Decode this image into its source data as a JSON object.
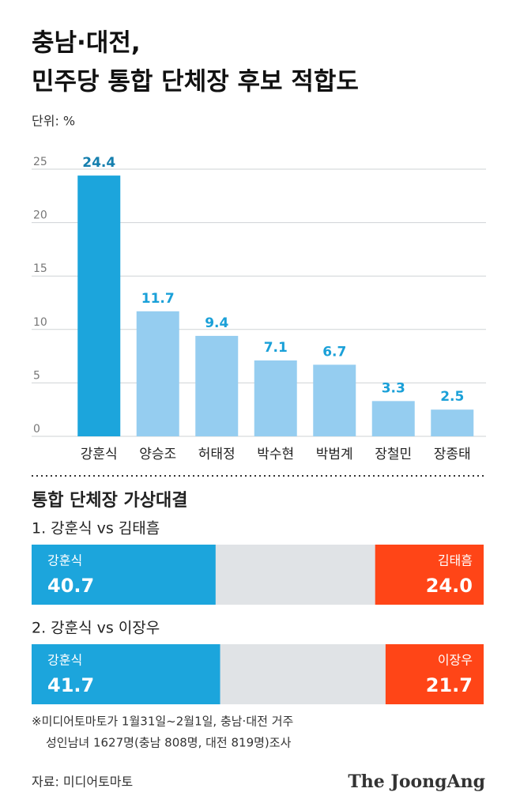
{
  "title_lines": [
    "충남·대전,",
    "민주당 통합 단체장 후보 적합도"
  ],
  "chart_data": {
    "type": "bar",
    "unit_label": "단위: %",
    "categories": [
      "강훈식",
      "양승조",
      "허태정",
      "박수현",
      "박범계",
      "장철민",
      "장종태"
    ],
    "values": [
      24.4,
      11.7,
      9.4,
      7.1,
      6.7,
      3.3,
      2.5
    ],
    "colors": [
      "#1ca5dc",
      "#95cdf0",
      "#95cdf0",
      "#95cdf0",
      "#95cdf0",
      "#95cdf0",
      "#95cdf0"
    ],
    "ylim": [
      0,
      25
    ],
    "yticks": [
      0,
      5,
      10,
      15,
      20,
      25
    ],
    "grid": true
  },
  "matchups": {
    "title": "통합 단체장 가상대결",
    "items": [
      {
        "label": "1. 강훈식 vs 김태흠",
        "left": {
          "name": "강훈식",
          "value": 40.7,
          "color": "#1ca5dc"
        },
        "right": {
          "name": "김태흠",
          "value": 24.0,
          "value_label": "24.0",
          "color": "#ff4517"
        }
      },
      {
        "label": "2. 강훈식 vs 이장우",
        "left": {
          "name": "강훈식",
          "value": 41.7,
          "color": "#1ca5dc"
        },
        "right": {
          "name": "이장우",
          "value": 21.7,
          "color": "#ff4517"
        }
      }
    ]
  },
  "notes": [
    "※미디어토마토가 1월31일~2월1일, 충남·대전 거주",
    "성인남녀 1627명(충남 808명, 대전 819명)조사"
  ],
  "source": "자료: 미디어토마토",
  "logo": "The JoongAng"
}
